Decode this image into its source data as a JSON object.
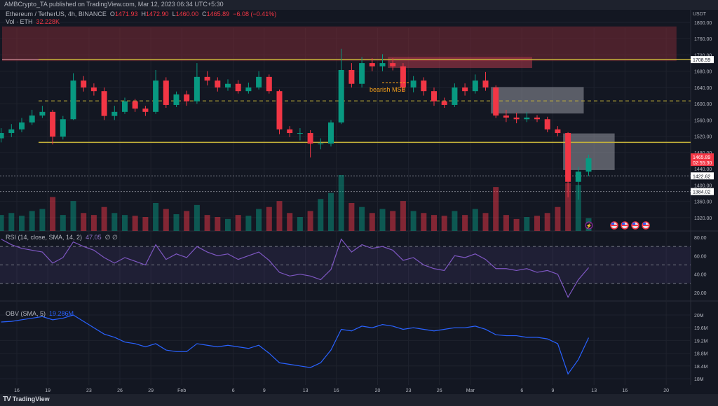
{
  "header": {
    "published": "AMBCrypto_TA published on TradingView.com, Mar 12, 2023 06:34 UTC+5:30"
  },
  "legend": {
    "symbol": "Ethereum / TetherUS, 4h, BINANCE",
    "o_label": "O",
    "o": "1471.93",
    "h_label": "H",
    "h": "1472.90",
    "l_label": "L",
    "l": "1460.00",
    "c_label": "C",
    "c": "1465.89",
    "change": "−6.08 (−0.41%)",
    "vol_label": "Vol · ETH",
    "vol": "32.228K",
    "rsi_label": "RSI (14, close, SMA, 14, 2)",
    "rsi_value": "47.05",
    "rsi_extra": "∅ ∅",
    "obv_label": "OBV (SMA, 5)",
    "obv_value": "19.286M"
  },
  "footer": {
    "brand": "TradingView",
    "logo_text": "TV"
  },
  "annotations": {
    "bearish_msb": "bearish MSB"
  },
  "colors": {
    "background": "#131722",
    "up": "#089981",
    "down": "#f23645",
    "support_line": "#c5b33a",
    "supply_zone": "#5a2530",
    "order_block": "#8a2f3c",
    "grey_zone": "#b2b5be",
    "rsi": "#7e57c2",
    "obv": "#2962ff",
    "annotation": "#f7a21b"
  },
  "icons": [
    "lightning-event-icon",
    "us-flag-event-icon",
    "us-flag-event-icon",
    "us-flag-event-icon",
    "us-flag-event-icon"
  ],
  "chart_data": [
    {
      "type": "candlestick",
      "title": "Ethereum / TetherUS, 4h, BINANCE",
      "ylabel": "USDT",
      "ylim": [
        1300,
        1810
      ],
      "grid": true,
      "price_ticks": [
        "1800.00",
        "1760.00",
        "1720.00",
        "1680.00",
        "1640.00",
        "1600.00",
        "1560.00",
        "1520.00",
        "1480.00",
        "1440.00",
        "1400.00",
        "1360.00",
        "1320.00"
      ],
      "x": [
        "2023-01-14",
        "2023-01-15",
        "2023-01-16",
        "2023-01-17",
        "2023-01-18",
        "2023-01-19",
        "2023-01-20",
        "2023-01-21",
        "2023-01-22",
        "2023-01-23",
        "2023-01-24",
        "2023-01-25",
        "2023-01-26",
        "2023-01-27",
        "2023-01-28",
        "2023-01-29",
        "2023-01-30",
        "2023-01-31",
        "2023-02-01",
        "2023-02-02",
        "2023-02-03",
        "2023-02-04",
        "2023-02-05",
        "2023-02-06",
        "2023-02-07",
        "2023-02-08",
        "2023-02-09",
        "2023-02-10",
        "2023-02-11",
        "2023-02-12",
        "2023-02-13",
        "2023-02-14",
        "2023-02-15",
        "2023-02-16",
        "2023-02-17",
        "2023-02-18",
        "2023-02-19",
        "2023-02-20",
        "2023-02-21",
        "2023-02-22",
        "2023-02-23",
        "2023-02-24",
        "2023-02-25",
        "2023-02-26",
        "2023-02-27",
        "2023-02-28",
        "2023-03-01",
        "2023-03-02",
        "2023-03-03",
        "2023-03-04",
        "2023-03-05",
        "2023-03-06",
        "2023-03-07",
        "2023-03-08",
        "2023-03-09",
        "2023-03-10",
        "2023-03-11",
        "2023-03-12"
      ],
      "open": [
        1515,
        1528,
        1537,
        1554,
        1571,
        1580,
        1519,
        1562,
        1657,
        1640,
        1631,
        1570,
        1580,
        1606,
        1588,
        1580,
        1657,
        1597,
        1623,
        1606,
        1666,
        1657,
        1640,
        1649,
        1631,
        1640,
        1666,
        1631,
        1537,
        1528,
        1528,
        1502,
        1502,
        1554,
        1683,
        1649,
        1700,
        1692,
        1700,
        1692,
        1640,
        1657,
        1631,
        1606,
        1597,
        1640,
        1631,
        1657,
        1640,
        1571,
        1566,
        1562,
        1566,
        1562,
        1537,
        1528,
        1408,
        1433
      ],
      "high": [
        1540,
        1550,
        1565,
        1585,
        1595,
        1585,
        1570,
        1675,
        1668,
        1650,
        1640,
        1595,
        1615,
        1612,
        1595,
        1683,
        1665,
        1630,
        1632,
        1700,
        1680,
        1665,
        1660,
        1658,
        1652,
        1680,
        1672,
        1635,
        1545,
        1540,
        1535,
        1515,
        1560,
        1735,
        1700,
        1715,
        1712,
        1722,
        1712,
        1700,
        1668,
        1665,
        1640,
        1615,
        1650,
        1650,
        1672,
        1678,
        1645,
        1585,
        1578,
        1580,
        1572,
        1568,
        1545,
        1530,
        1445,
        1475
      ],
      "low": [
        1505,
        1518,
        1530,
        1548,
        1565,
        1500,
        1512,
        1560,
        1630,
        1620,
        1560,
        1560,
        1575,
        1580,
        1570,
        1575,
        1590,
        1592,
        1595,
        1600,
        1645,
        1630,
        1632,
        1625,
        1625,
        1635,
        1625,
        1525,
        1518,
        1510,
        1468,
        1488,
        1495,
        1550,
        1640,
        1640,
        1680,
        1680,
        1682,
        1630,
        1628,
        1620,
        1595,
        1590,
        1592,
        1620,
        1625,
        1632,
        1565,
        1555,
        1552,
        1555,
        1555,
        1530,
        1520,
        1370,
        1364,
        1422
      ],
      "close": [
        1528,
        1537,
        1554,
        1571,
        1580,
        1519,
        1562,
        1657,
        1640,
        1631,
        1570,
        1580,
        1606,
        1588,
        1580,
        1657,
        1597,
        1623,
        1606,
        1666,
        1657,
        1640,
        1649,
        1631,
        1640,
        1666,
        1631,
        1537,
        1528,
        1528,
        1502,
        1502,
        1554,
        1683,
        1649,
        1700,
        1692,
        1700,
        1692,
        1640,
        1657,
        1631,
        1606,
        1597,
        1640,
        1631,
        1657,
        1640,
        1571,
        1566,
        1562,
        1566,
        1562,
        1537,
        1528,
        1408,
        1433,
        1465.89
      ],
      "volume_k_eth": [
        40,
        45,
        38,
        50,
        55,
        85,
        40,
        75,
        45,
        40,
        60,
        45,
        40,
        38,
        35,
        70,
        55,
        42,
        50,
        65,
        40,
        35,
        30,
        40,
        38,
        55,
        60,
        75,
        45,
        35,
        50,
        80,
        95,
        140,
        70,
        60,
        45,
        55,
        50,
        75,
        50,
        45,
        40,
        38,
        50,
        40,
        55,
        45,
        110,
        40,
        30,
        35,
        38,
        45,
        60,
        120,
        115,
        32.228
      ],
      "levels": [
        {
          "price": 1708.59,
          "label": "1708.59",
          "style": "solid",
          "color": "#c5b33a"
        },
        {
          "price": 1607,
          "style": "dashed",
          "color": "#c5b33a"
        },
        {
          "price": 1505,
          "style": "solid",
          "color": "#c5b33a"
        },
        {
          "price": 1422.62,
          "label": "1422.62",
          "style": "dotted",
          "color": "#787b86"
        },
        {
          "price": 1384.02,
          "label": "1384.02",
          "style": "dotted",
          "color": "#787b86"
        }
      ],
      "last_price": {
        "label": "1465.89",
        "countdown": "02:55:30"
      },
      "zones": [
        {
          "name": "supply-zone",
          "from": "2023-01-14",
          "to": "2023-03-21",
          "top": 1790,
          "bottom": 1705
        },
        {
          "name": "bearish-order-block",
          "from": "2023-02-21",
          "to": "2023-03-07",
          "top": 1715,
          "bottom": 1688
        },
        {
          "name": "grey-zone-upper",
          "from": "2023-03-03",
          "to": "2023-03-12",
          "top": 1641,
          "bottom": 1576
        },
        {
          "name": "grey-zone-lower",
          "from": "2023-03-10",
          "to": "2023-03-15",
          "top": 1527,
          "bottom": 1437
        }
      ]
    },
    {
      "type": "line",
      "title": "RSI (14, close, SMA, 14, 2)",
      "ylim": [
        10,
        85
      ],
      "ticks": [
        "80.00",
        "60.00",
        "40.00",
        "20.00"
      ],
      "band": [
        30,
        70
      ],
      "values": [
        78,
        72,
        68,
        66,
        64,
        52,
        58,
        75,
        70,
        66,
        58,
        52,
        58,
        54,
        50,
        72,
        56,
        62,
        58,
        70,
        64,
        60,
        62,
        56,
        60,
        64,
        55,
        42,
        38,
        40,
        38,
        34,
        45,
        78,
        64,
        72,
        68,
        70,
        66,
        55,
        58,
        50,
        46,
        44,
        60,
        58,
        62,
        56,
        46,
        46,
        44,
        46,
        42,
        44,
        40,
        15,
        34,
        47.05
      ]
    },
    {
      "type": "line",
      "title": "OBV (SMA, 5)",
      "unit": "M",
      "ticks": [
        "20M",
        "19.6M",
        "19.2M",
        "18.8M",
        "18.4M",
        "18M"
      ],
      "values": [
        19.78,
        19.8,
        19.85,
        19.9,
        19.95,
        19.85,
        19.9,
        20.0,
        19.8,
        19.6,
        19.4,
        19.3,
        19.15,
        19.1,
        19.0,
        19.1,
        18.9,
        18.85,
        18.85,
        19.1,
        19.05,
        19.0,
        19.05,
        19.0,
        18.95,
        19.05,
        18.8,
        18.5,
        18.45,
        18.4,
        18.35,
        18.5,
        18.9,
        19.55,
        19.5,
        19.65,
        19.6,
        19.7,
        19.65,
        19.55,
        19.6,
        19.55,
        19.5,
        19.55,
        19.6,
        19.6,
        19.65,
        19.55,
        19.38,
        19.35,
        19.35,
        19.3,
        19.3,
        19.25,
        19.1,
        18.15,
        18.6,
        19.286
      ]
    }
  ],
  "time_axis": [
    {
      "label": "16",
      "date": "2023-01-16"
    },
    {
      "label": "19",
      "date": "2023-01-19"
    },
    {
      "label": "23",
      "date": "2023-01-23"
    },
    {
      "label": "26",
      "date": "2023-01-26"
    },
    {
      "label": "29",
      "date": "2023-01-29"
    },
    {
      "label": "Feb",
      "date": "2023-02-01"
    },
    {
      "label": "6",
      "date": "2023-02-06"
    },
    {
      "label": "9",
      "date": "2023-02-09"
    },
    {
      "label": "13",
      "date": "2023-02-13"
    },
    {
      "label": "16",
      "date": "2023-02-16"
    },
    {
      "label": "20",
      "date": "2023-02-20"
    },
    {
      "label": "23",
      "date": "2023-02-23"
    },
    {
      "label": "26",
      "date": "2023-02-26"
    },
    {
      "label": "Mar",
      "date": "2023-03-01"
    },
    {
      "label": "6",
      "date": "2023-03-06"
    },
    {
      "label": "9",
      "date": "2023-03-09"
    },
    {
      "label": "13",
      "date": "2023-03-13"
    },
    {
      "label": "16",
      "date": "2023-03-16"
    },
    {
      "label": "20",
      "date": "2023-03-20"
    }
  ]
}
